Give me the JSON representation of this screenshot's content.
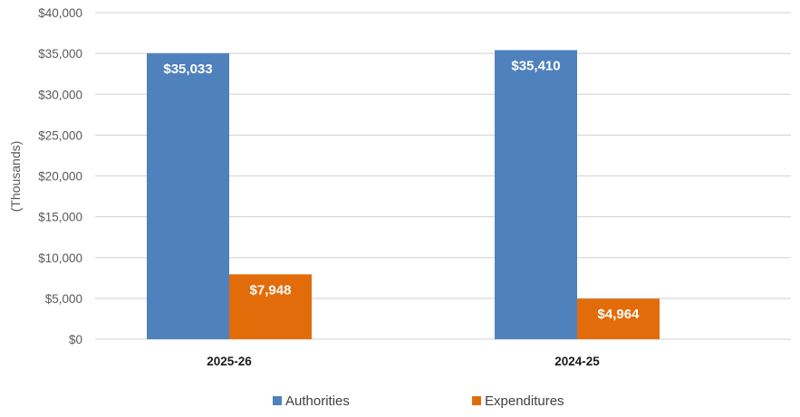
{
  "chart_data": {
    "type": "bar",
    "title": "",
    "xlabel": "",
    "ylabel": "(Thousands)",
    "categories": [
      "2025-26",
      "2024-25"
    ],
    "series": [
      {
        "name": "Authorities",
        "color": "#4f81bd",
        "values": [
          35033,
          35410
        ],
        "labels": [
          "$35,033",
          "$35,410"
        ]
      },
      {
        "name": "Expenditures",
        "color": "#e36c0a",
        "values": [
          7948,
          4964
        ],
        "labels": [
          "$7,948",
          "$4,964"
        ]
      }
    ],
    "ylim": [
      0,
      40000
    ],
    "yticks": [
      0,
      5000,
      10000,
      15000,
      20000,
      25000,
      30000,
      35000,
      40000
    ],
    "ytick_labels": [
      "$0",
      "$5,000",
      "$10,000",
      "$15,000",
      "$20,000",
      "$25,000",
      "$30,000",
      "$35,000",
      "$40,000"
    ],
    "grid": true,
    "legend_position": "bottom"
  }
}
